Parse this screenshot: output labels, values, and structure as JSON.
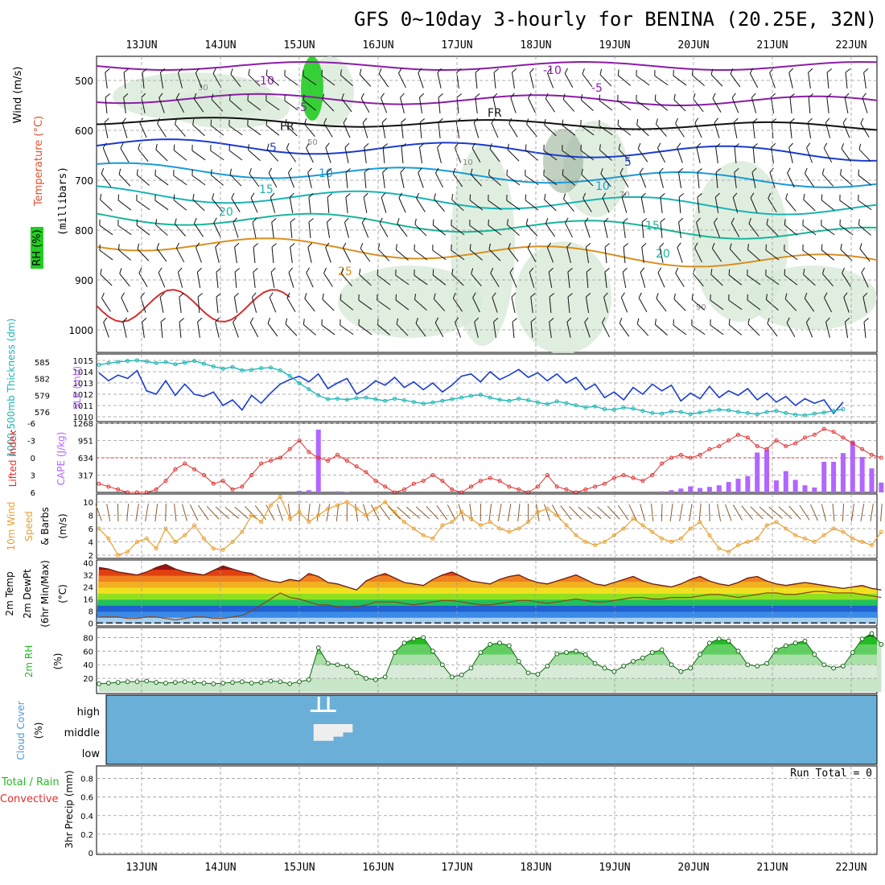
{
  "title": "GFS 0~10day 3-hourly for BENINA (20.25E, 32N)",
  "dates": [
    "13JUN",
    "14JUN",
    "15JUN",
    "16JUN",
    "17JUN",
    "18JUN",
    "19JUN",
    "20JUN",
    "21JUN",
    "22JUN"
  ],
  "colors": {
    "grid": "#aaaaaa",
    "rh_green": "#22cc22",
    "slp": "#1a3ccf",
    "thk": "#19b4b4",
    "cape": "#b266ff",
    "li": "#e03030",
    "wind": "#e8a030",
    "temp_hot": "#c03010",
    "dew": "#8b4513",
    "cloud": "#6aafd8",
    "rh2": "#22bb22"
  },
  "panels": {
    "upper": {
      "ylabel": "(millibars)",
      "side_labels": [
        "Wind (m/s)",
        "Temperature (°C)",
        "RH (%)"
      ],
      "levels": [
        "500",
        "600",
        "700",
        "800",
        "900",
        "1000"
      ],
      "temp_labels": [
        "-10",
        "-5",
        "FR",
        "5",
        "10",
        "15",
        "20",
        "25",
        "-10",
        "-5",
        "FR",
        "5",
        "10",
        "15",
        "20"
      ],
      "rh_labels": [
        "30",
        "50",
        "10",
        "70",
        "90"
      ]
    },
    "slp": {
      "left_label": "1000-500mb Thickness (dm)",
      "right_label": "SLP (mb)",
      "thk_ticks": [
        "585",
        "582",
        "579",
        "576"
      ],
      "slp_ticks": [
        "1015",
        "1014",
        "1013",
        "1012",
        "1011",
        "1010"
      ]
    },
    "cape": {
      "left_label": "Lifted Index",
      "right_label": "CAPE (J/kg)",
      "li_ticks": [
        "-6",
        "-3",
        "0",
        "3",
        "6"
      ],
      "cape_ticks": [
        "1268",
        "951",
        "634",
        "317"
      ]
    },
    "wind": {
      "label1": "10m Wind",
      "label2": "Speed",
      "label3": "& Barbs",
      "unit": "(m/s)",
      "ticks": [
        "10",
        "8",
        "6",
        "4",
        "2"
      ]
    },
    "temp": {
      "label1": "2m Temp",
      "label2": "2m DewPt",
      "label3": "(6hr Min/Max)",
      "unit": "(°C)",
      "ticks": [
        "40",
        "32",
        "24",
        "16",
        "8",
        "0"
      ]
    },
    "rh": {
      "label": "2m RH",
      "unit": "(%)",
      "ticks": [
        "80",
        "60",
        "40",
        "20"
      ]
    },
    "cloud": {
      "label": "Cloud Cover",
      "unit": "(%)",
      "levels": [
        "high",
        "middle",
        "low"
      ]
    },
    "precip": {
      "label1": "Total / Rain",
      "label2": "Convective",
      "label3": "3hr Precip (mm)",
      "ticks": [
        "0.8",
        "0.6",
        "0.4",
        "0.2",
        "0"
      ],
      "run_total": "Run Total = 0"
    }
  },
  "chart_data": {
    "type": "meteogram",
    "x": [
      "13JUN",
      "14JUN",
      "15JUN",
      "16JUN",
      "17JUN",
      "18JUN",
      "19JUN",
      "20JUN",
      "21JUN",
      "22JUN"
    ],
    "slp_mb": [
      1013.9,
      1013.2,
      1013.7,
      1013.4,
      1014.1,
      1012.3,
      1012.0,
      1013.2,
      1011.9,
      1012.9,
      1012.0,
      1011.8,
      1012.2,
      1011.0,
      1011.5,
      1010.6,
      1011.9,
      1011.2,
      1012.1,
      1012.9,
      1013.3,
      1013.6,
      1013.1,
      1013.8,
      1012.5,
      1013.0,
      1013.4,
      1012.0,
      1012.5,
      1013.2,
      1012.8,
      1013.5,
      1012.6,
      1013.1,
      1012.4,
      1013.0,
      1012.2,
      1012.8,
      1013.6,
      1013.8,
      1013.1,
      1014.0,
      1013.3,
      1013.7,
      1014.2,
      1013.5,
      1013.9,
      1013.2,
      1013.8,
      1013.0,
      1013.5,
      1012.4,
      1012.9,
      1011.7,
      1012.2,
      1011.5,
      1012.6,
      1012.0,
      1012.9,
      1012.3,
      1012.8,
      1011.4,
      1012.1,
      1011.6,
      1012.7,
      1011.7,
      1012.3,
      1011.9,
      1012.5,
      1011.5,
      1012.1,
      1011.3,
      1011.8,
      1011.0,
      1011.6,
      1011.2,
      1011.5,
      1010.3,
      1011.3
    ],
    "thickness_dm": [
      584.5,
      584.8,
      585.0,
      585.2,
      585.3,
      585.1,
      584.8,
      585.0,
      584.6,
      584.9,
      585.2,
      584.7,
      584.2,
      583.8,
      584.1,
      583.5,
      583.6,
      583.9,
      584.0,
      583.5,
      582.5,
      581.2,
      580.1,
      579.0,
      578.3,
      578.4,
      578.2,
      578.5,
      578.6,
      578.3,
      578.0,
      578.4,
      578.1,
      577.8,
      577.5,
      577.7,
      578.0,
      578.3,
      578.6,
      578.9,
      579.1,
      578.6,
      578.2,
      578.0,
      578.4,
      578.1,
      577.7,
      577.4,
      577.9,
      577.6,
      577.2,
      576.8,
      577.0,
      576.5,
      576.4,
      576.8,
      576.6,
      576.2,
      575.8,
      575.7,
      576.1,
      576.0,
      575.6,
      575.9,
      576.2,
      576.4,
      576.3,
      576.0,
      575.8,
      575.6,
      576.0,
      576.2,
      575.8,
      575.5,
      575.4,
      575.7,
      575.9,
      576.2,
      576.5
    ],
    "cape_jkg": [
      0,
      0,
      0,
      0,
      0,
      0,
      0,
      0,
      0,
      0,
      0,
      0,
      0,
      0,
      0,
      0,
      0,
      0,
      0,
      0,
      0,
      30,
      40,
      1150,
      0,
      20,
      10,
      0,
      0,
      0,
      0,
      0,
      0,
      0,
      0,
      0,
      0,
      0,
      0,
      0,
      0,
      0,
      0,
      0,
      0,
      0,
      0,
      0,
      0,
      0,
      0,
      0,
      0,
      0,
      0,
      0,
      0,
      0,
      0,
      20,
      40,
      70,
      110,
      80,
      100,
      130,
      190,
      250,
      300,
      730,
      780,
      220,
      390,
      230,
      130,
      90,
      560,
      560,
      720,
      940,
      650,
      440,
      180
    ],
    "lifted_index": [
      4.5,
      5.0,
      5.5,
      6.0,
      6.0,
      6.0,
      5.5,
      4.0,
      2.0,
      1.0,
      2.0,
      3.0,
      4.5,
      4.0,
      5.5,
      5.0,
      3.0,
      1.0,
      0.5,
      0.0,
      -1.5,
      -3.0,
      -1.0,
      0.0,
      0.5,
      -0.5,
      0.5,
      1.5,
      2.5,
      4.0,
      5.0,
      6.0,
      5.5,
      4.5,
      4.0,
      3.0,
      4.0,
      5.5,
      6.0,
      5.0,
      4.0,
      3.5,
      4.0,
      5.0,
      5.5,
      6.0,
      5.0,
      3.0,
      5.0,
      5.5,
      6.0,
      5.5,
      5.0,
      4.5,
      3.5,
      3.0,
      3.5,
      4.0,
      3.0,
      1.0,
      0.0,
      -0.5,
      0.0,
      -0.5,
      -1.5,
      -2.0,
      -3.0,
      -4.0,
      -3.5,
      -2.0,
      -1.5,
      -3.0,
      -2.0,
      -2.5,
      -3.5,
      -4.0,
      -5.0,
      -4.5,
      -3.5,
      -2.5,
      -1.5,
      -0.5,
      0.0
    ],
    "wind_ms": [
      6.0,
      4.5,
      2.0,
      2.5,
      4.0,
      4.5,
      3.0,
      6.0,
      4.0,
      5.0,
      6.5,
      4.5,
      3.0,
      2.8,
      4.0,
      5.5,
      8.0,
      7.0,
      9.5,
      10.8,
      7.5,
      8.5,
      7.0,
      8.0,
      9.0,
      9.5,
      10.0,
      9.0,
      8.0,
      9.0,
      10.0,
      8.5,
      7.0,
      6.0,
      5.0,
      4.5,
      6.5,
      7.0,
      8.5,
      7.5,
      6.5,
      7.0,
      6.0,
      5.5,
      6.0,
      7.0,
      8.5,
      9.0,
      8.0,
      6.5,
      5.0,
      4.0,
      3.5,
      4.0,
      5.0,
      6.0,
      7.5,
      6.5,
      5.5,
      4.5,
      4.0,
      4.5,
      6.0,
      7.0,
      5.0,
      3.0,
      2.5,
      3.5,
      4.0,
      4.5,
      6.5,
      7.0,
      6.0,
      5.0,
      4.5,
      4.0,
      5.0,
      6.0,
      5.5,
      4.5,
      4.0,
      3.5,
      5.5
    ],
    "temp_c": [
      37,
      36,
      34,
      33,
      32,
      34,
      37,
      39,
      36,
      34,
      33,
      32,
      35,
      38,
      36,
      34,
      33,
      30,
      28,
      27,
      29,
      28,
      33,
      31,
      27,
      26,
      24,
      22,
      28,
      31,
      33,
      30,
      27,
      26,
      25,
      29,
      32,
      34,
      31,
      28,
      27,
      26,
      29,
      31,
      32,
      29,
      27,
      26,
      28,
      30,
      32,
      29,
      26,
      25,
      27,
      29,
      31,
      28,
      26,
      25,
      24,
      26,
      29,
      31,
      28,
      26,
      25,
      27,
      30,
      31,
      28,
      26,
      25,
      26,
      27,
      26,
      25,
      24,
      23,
      24,
      25,
      23,
      22
    ],
    "dew_c": [
      4,
      4,
      4,
      3,
      3,
      4,
      4,
      3,
      2,
      3,
      4,
      4,
      3,
      3,
      4,
      5,
      8,
      12,
      16,
      20,
      17,
      16,
      14,
      12,
      12,
      11,
      10,
      11,
      12,
      14,
      14,
      14,
      13,
      12,
      13,
      14,
      15,
      15,
      14,
      13,
      12,
      12,
      13,
      14,
      15,
      15,
      14,
      13,
      14,
      15,
      16,
      15,
      14,
      14,
      15,
      16,
      17,
      17,
      16,
      16,
      17,
      17,
      17,
      18,
      19,
      19,
      18,
      17,
      18,
      19,
      20,
      20,
      19,
      19,
      20,
      21,
      21,
      20,
      20,
      20,
      19,
      18,
      17
    ],
    "rh_pct": [
      12,
      13,
      14,
      15,
      15,
      16,
      14,
      13,
      14,
      15,
      14,
      13,
      12,
      13,
      14,
      15,
      13,
      14,
      16,
      15,
      12,
      15,
      18,
      65,
      42,
      40,
      38,
      28,
      20,
      18,
      22,
      58,
      72,
      78,
      80,
      60,
      40,
      22,
      25,
      35,
      58,
      70,
      72,
      68,
      45,
      28,
      26,
      38,
      56,
      58,
      60,
      55,
      42,
      35,
      30,
      38,
      45,
      50,
      58,
      62,
      40,
      30,
      35,
      55,
      72,
      78,
      75,
      60,
      40,
      38,
      42,
      62,
      68,
      72,
      75,
      55,
      40,
      35,
      38,
      58,
      78,
      86,
      70
    ],
    "cloud_high_pct": [
      0,
      0,
      0,
      0,
      0,
      0,
      0,
      0,
      0,
      0,
      0,
      0,
      0,
      0,
      0,
      0,
      0,
      0,
      0,
      0,
      0,
      0,
      0,
      20,
      10,
      0,
      0,
      0,
      0,
      0,
      0,
      0,
      0,
      0,
      0,
      0,
      0,
      0,
      0,
      0,
      0,
      0,
      0,
      0,
      0,
      0,
      0,
      0,
      0,
      0,
      0,
      0,
      0,
      0,
      0,
      0,
      0,
      0,
      0,
      0,
      0,
      0,
      0,
      0,
      0,
      0,
      0,
      0,
      0,
      0,
      0,
      0,
      0,
      0,
      0,
      0,
      0,
      0,
      0,
      0,
      0,
      0,
      0
    ],
    "cloud_mid_pct": [
      0,
      0,
      0,
      0,
      0,
      0,
      0,
      0,
      0,
      0,
      0,
      0,
      0,
      0,
      0,
      0,
      0,
      0,
      0,
      0,
      0,
      0,
      0,
      80,
      80,
      60,
      40,
      0,
      0,
      0,
      0,
      0,
      0,
      0,
      0,
      0,
      0,
      0,
      0,
      0,
      0,
      0,
      0,
      0,
      0,
      0,
      0,
      0,
      0,
      0,
      0,
      0,
      0,
      0,
      0,
      0,
      0,
      0,
      0,
      0,
      0,
      0,
      0,
      0,
      0,
      0,
      0,
      0,
      0,
      0,
      0,
      0,
      0,
      0,
      0,
      0,
      0,
      0,
      0,
      0,
      0,
      0,
      0
    ],
    "precip_mm": [
      0,
      0,
      0,
      0,
      0,
      0,
      0,
      0,
      0,
      0
    ],
    "run_total": "Run Total = 0"
  }
}
